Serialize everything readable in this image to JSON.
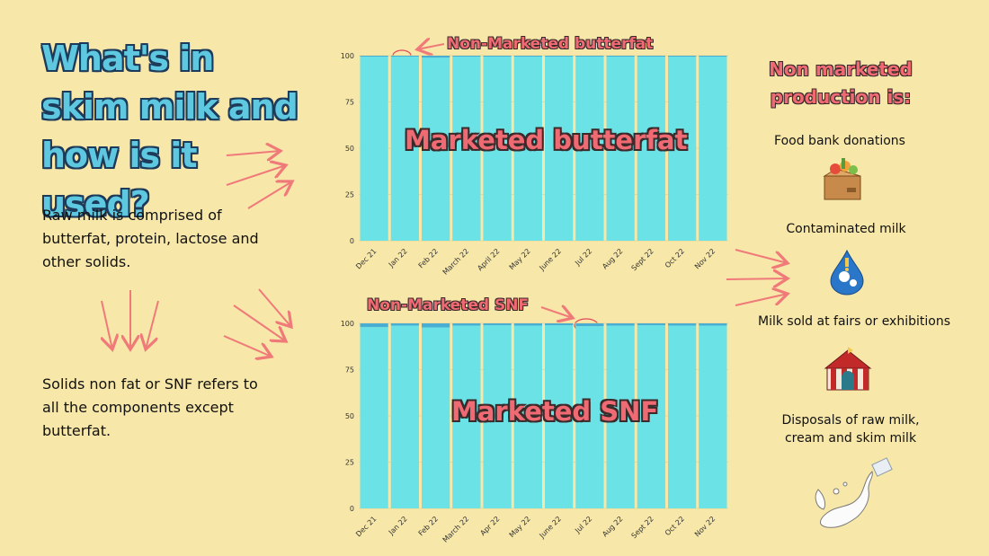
{
  "title": "What's in skim milk and how is it used?",
  "left_text": {
    "para1": "Raw milk is comprised of butterfat, protein, lactose and other solids.",
    "para2": "Solids non fat or SNF refers to all the components except butterfat."
  },
  "right_panel": {
    "heading": "Non marketed production is:",
    "items": [
      {
        "label": "Food bank donations",
        "icon": "food-box-icon"
      },
      {
        "label": "Contaminated milk",
        "icon": "contaminated-milk-drop-icon"
      },
      {
        "label": "Milk sold at fairs or exhibitions",
        "icon": "fair-tent-icon"
      },
      {
        "label": "Disposals of raw milk,\ncream and skim milk",
        "icon": "milk-splash-icon"
      }
    ]
  },
  "colors": {
    "background": "#f7e7a8",
    "marketed": "#6ae2e6",
    "non_marketed": "#4aaed3",
    "accent_red": "#f06a74",
    "title_blue": "#5ec8e0"
  },
  "chart_data": [
    {
      "type": "bar",
      "stacked": true,
      "categories": [
        "Dec 21",
        "Jan 22",
        "Feb 22",
        "March 22",
        "April 22",
        "May 22",
        "June 22",
        "Jul 22",
        "Aug 22",
        "Sept 22",
        "Oct 22",
        "Nov 22"
      ],
      "series": [
        {
          "name": "Marketed butterfat",
          "values": [
            99.5,
            99.5,
            99.0,
            99.5,
            99.5,
            99.5,
            99.5,
            99.5,
            99.5,
            99.5,
            99.5,
            99.5
          ]
        },
        {
          "name": "Non-Marketed butterfat",
          "values": [
            0.5,
            0.5,
            1.0,
            0.5,
            0.5,
            0.5,
            0.5,
            0.5,
            0.5,
            0.5,
            0.5,
            0.5
          ]
        }
      ],
      "yticks": [
        0,
        25,
        50,
        75,
        100
      ],
      "ylim": [
        0,
        100
      ],
      "legend": "none",
      "grid": true
    },
    {
      "type": "bar",
      "stacked": true,
      "categories": [
        "Dec 21",
        "Jan 22",
        "Feb 22",
        "March 22",
        "Apr 22",
        "May 22",
        "June 22",
        "Jul 22",
        "Aug 22",
        "Sept 22",
        "Oct 22",
        "Nov 22"
      ],
      "series": [
        {
          "name": "Marketed SNF",
          "values": [
            98.0,
            98.8,
            97.8,
            98.8,
            99.0,
            98.8,
            99.0,
            98.5,
            98.8,
            99.0,
            98.8,
            98.8
          ]
        },
        {
          "name": "Non-Marketed SNF",
          "values": [
            2.0,
            1.2,
            2.2,
            1.2,
            1.0,
            1.2,
            1.0,
            1.5,
            1.2,
            1.0,
            1.2,
            1.2
          ]
        }
      ],
      "yticks": [
        0,
        25,
        50,
        75,
        100
      ],
      "ylim": [
        0,
        100
      ],
      "legend": "none",
      "grid": true
    }
  ]
}
